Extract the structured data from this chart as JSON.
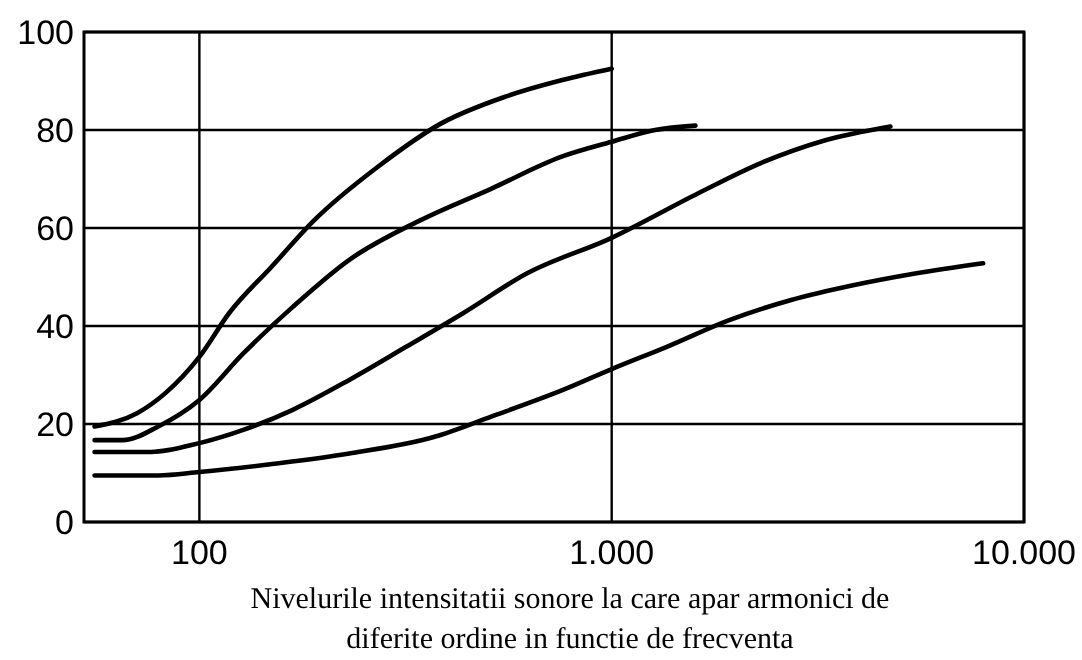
{
  "chart_data": {
    "type": "line",
    "xlabel": "Nivelurile intensitatii sonore la care apar armonici de\ndiferite ordine in functie de frecventa",
    "log": "x",
    "xlim": [
      52.5,
      10000
    ],
    "xticks": [
      {
        "value": 100,
        "label": "100"
      },
      {
        "value": 1000,
        "label": "1.000"
      },
      {
        "value": 10000,
        "label": "10.000"
      }
    ],
    "ylim": [
      0,
      100
    ],
    "yticks": [
      0,
      20,
      40,
      60,
      80,
      100
    ],
    "grid": true,
    "series": [
      {
        "color": "#000000",
        "x": [
          55.7,
          70.6,
          82.7,
          100,
          118,
          149.7,
          190,
          271,
          387,
          552,
          759,
          1000
        ],
        "values": [
          19.5,
          22.2,
          26.3,
          33.7,
          42.6,
          52.1,
          61.6,
          72.5,
          81.4,
          86.8,
          90.2,
          92.5
        ]
      },
      {
        "color": "#000000",
        "x": [
          55.7,
          65.2,
          79.5,
          100,
          127.8,
          168.5,
          231,
          344,
          510,
          759,
          1000,
          1274,
          1596
        ],
        "values": [
          16.7,
          16.7,
          19.5,
          24.9,
          34.4,
          43.9,
          53.5,
          61.6,
          68,
          74.6,
          77.6,
          80,
          80.9
        ]
      },
      {
        "color": "#000000",
        "x": [
          55.7,
          76.4,
          100,
          127.8,
          168.5,
          231,
          318,
          436,
          622,
          1000,
          1622,
          2293,
          3236,
          4742
        ],
        "values": [
          14.3,
          14.3,
          16.1,
          18.8,
          22.9,
          29,
          35.8,
          42.6,
          50.7,
          58,
          67.1,
          73.2,
          77.7,
          80.7
        ]
      },
      {
        "color": "#000000",
        "x": [
          55.7,
          79.5,
          100,
          155.7,
          231,
          372,
          510,
          759,
          1000,
          1365,
          1928,
          2725,
          3851,
          5445,
          7960
        ],
        "values": [
          9.5,
          9.5,
          10.2,
          12,
          14,
          17.4,
          21.5,
          26.9,
          31.2,
          35.8,
          41.2,
          45.3,
          48.3,
          50.7,
          52.8
        ]
      }
    ]
  }
}
